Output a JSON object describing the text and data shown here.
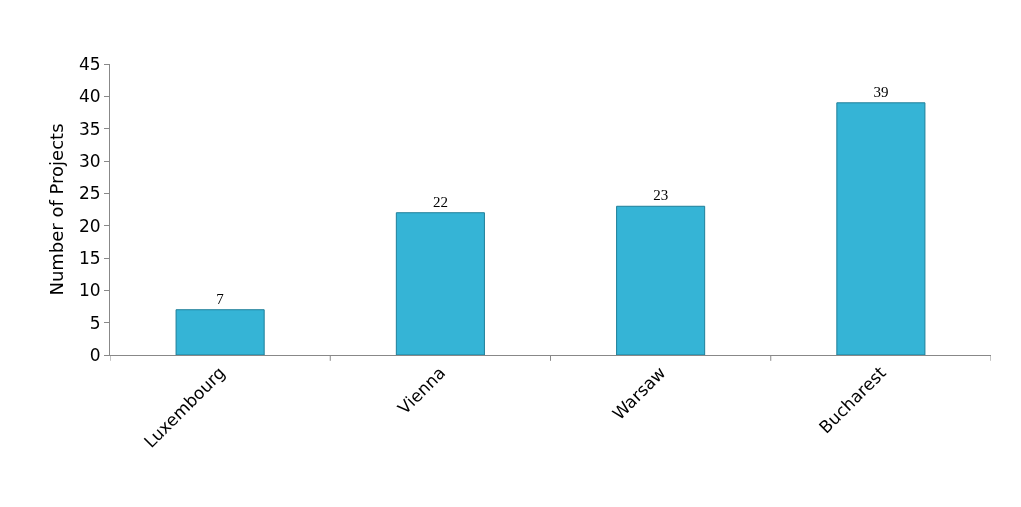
{
  "chart_data": {
    "type": "bar",
    "ylabel": "Number of Projects",
    "categories": [
      "Luxembourg",
      "Vienna",
      "Warsaw",
      "Bucharest"
    ],
    "values": [
      7,
      22,
      23,
      39
    ],
    "color": "#35b4d6",
    "ylim": [
      0,
      45
    ],
    "yticks": [
      0,
      5,
      10,
      15,
      20,
      25,
      30,
      35,
      40,
      45
    ],
    "grid": false,
    "data_labels": true,
    "legend": false
  }
}
